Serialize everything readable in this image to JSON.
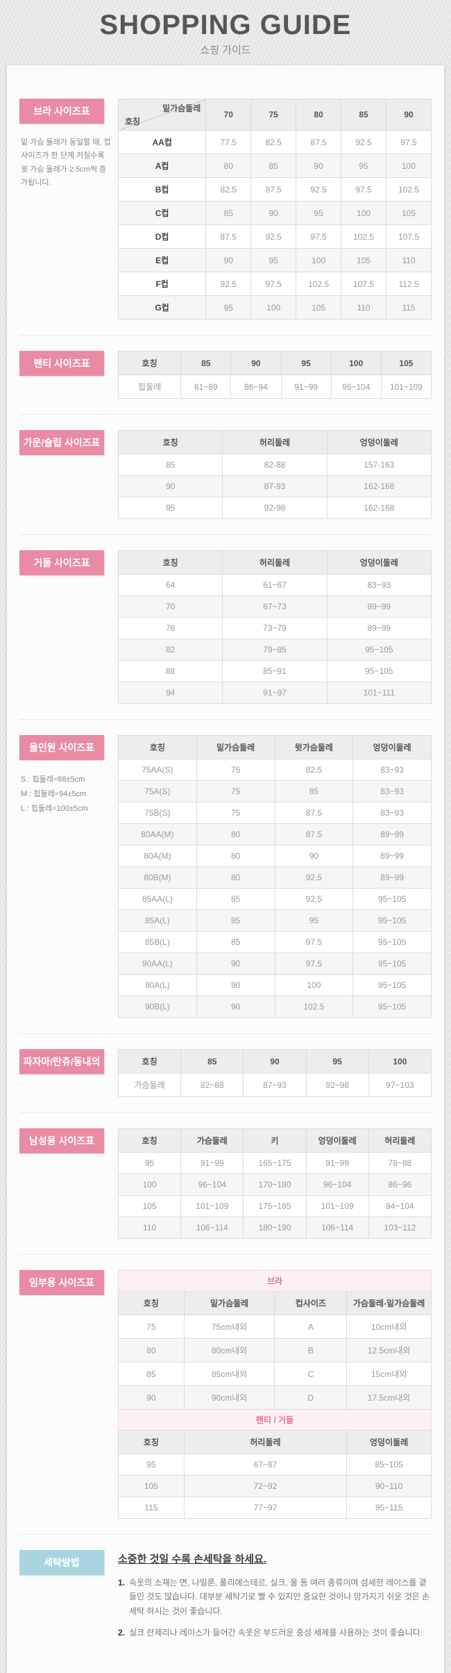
{
  "page": {
    "title": "SHOPPING GUIDE",
    "subtitle": "쇼핑 가이드"
  },
  "colors": {
    "accent_pink": "#e98ba4",
    "accent_blue": "#a8d4e2",
    "subheader_pink_bg": "#fdf0f4",
    "subheader_pink_text": "#e2748f",
    "table_header_bg": "#ededed"
  },
  "sections": {
    "bra": {
      "badge": "브라 사이즈표",
      "note": "밑 가슴 둘레가 동일할 때, 컵 사이즈가 한 단계 커질수록 윗 가슴 둘레가 2.5cm씩 증가됩니다.",
      "table": {
        "cols": 6,
        "firstColStrong": true,
        "rows": [
          {
            "type": "head",
            "cells": [
              {
                "diag": {
                  "top": "밑가슴둘레",
                  "bottom": "호칭"
                }
              },
              "70",
              "75",
              "80",
              "85",
              "90"
            ]
          },
          {
            "type": "data",
            "cells": [
              "AA컵",
              "77.5",
              "82.5",
              "87.5",
              "92.5",
              "97.5"
            ]
          },
          {
            "type": "data",
            "cells": [
              "A컵",
              "80",
              "85",
              "90",
              "95",
              "100"
            ]
          },
          {
            "type": "data",
            "cells": [
              "B컵",
              "82.5",
              "87.5",
              "92.5",
              "97.5",
              "102.5"
            ]
          },
          {
            "type": "data",
            "cells": [
              "C컵",
              "85",
              "90",
              "95",
              "100",
              "105"
            ]
          },
          {
            "type": "data",
            "cells": [
              "D컵",
              "87.5",
              "92.5",
              "97.5",
              "102.5",
              "107.5"
            ]
          },
          {
            "type": "data",
            "cells": [
              "E컵",
              "90",
              "95",
              "100",
              "105",
              "110"
            ]
          },
          {
            "type": "data",
            "cells": [
              "F컵",
              "92.5",
              "97.5",
              "102.5",
              "107.5",
              "112.5"
            ]
          },
          {
            "type": "data",
            "cells": [
              "G컵",
              "95",
              "100",
              "105",
              "110",
              "115"
            ]
          }
        ]
      }
    },
    "panty": {
      "badge": "팬티 사이즈표",
      "table": {
        "cols": 6,
        "rows": [
          {
            "type": "head",
            "cells": [
              "호칭",
              "85",
              "90",
              "95",
              "100",
              "105"
            ]
          },
          {
            "type": "data",
            "cells": [
              "힙둘레",
              "81~89",
              "86~94",
              "91~99",
              "96~104",
              "101~109"
            ]
          }
        ]
      }
    },
    "gown": {
      "badge": "가운/슬립 사이즈표",
      "table": {
        "cols": 3,
        "rows": [
          {
            "type": "head",
            "cells": [
              "호칭",
              "허리둘레",
              "엉덩이둘레"
            ]
          },
          {
            "type": "data",
            "cells": [
              "85",
              "82-88",
              "157-163"
            ]
          },
          {
            "type": "data",
            "cells": [
              "90",
              "87-93",
              "162-168"
            ]
          },
          {
            "type": "data",
            "cells": [
              "95",
              "92-98",
              "162-168"
            ]
          }
        ]
      }
    },
    "girdle": {
      "badge": "거들 사이즈표",
      "table": {
        "cols": 3,
        "rows": [
          {
            "type": "head",
            "cells": [
              "호칭",
              "허리둘레",
              "엉덩이둘레"
            ]
          },
          {
            "type": "data",
            "cells": [
              "64",
              "61~67",
              "83~93"
            ]
          },
          {
            "type": "data",
            "cells": [
              "70",
              "67~73",
              "89~99"
            ]
          },
          {
            "type": "data",
            "cells": [
              "76",
              "73~79",
              "89~99"
            ]
          },
          {
            "type": "data",
            "cells": [
              "82",
              "79~85",
              "95~105"
            ]
          },
          {
            "type": "data",
            "cells": [
              "88",
              "85~91",
              "95~105"
            ]
          },
          {
            "type": "data",
            "cells": [
              "94",
              "91~97",
              "101~111"
            ]
          }
        ]
      }
    },
    "allinone": {
      "badge": "올인원 사이즈표",
      "notes": [
        "S : 힙둘레=88±5cm",
        "M : 힙둘레=94±5cm",
        "L : 힙둘레=100±5cm"
      ],
      "table": {
        "cols": 4,
        "rows": [
          {
            "type": "head",
            "cells": [
              "호칭",
              "밑가슴둘레",
              "윗가슴둘레",
              "엉덩이둘레"
            ]
          },
          {
            "type": "data",
            "cells": [
              "75AA(S)",
              "75",
              "82.5",
              "83~93"
            ]
          },
          {
            "type": "data",
            "cells": [
              "75A(S)",
              "75",
              "85",
              "83~93"
            ]
          },
          {
            "type": "data",
            "cells": [
              "75B(S)",
              "75",
              "87.5",
              "83~93"
            ]
          },
          {
            "type": "data",
            "cells": [
              "80AA(M)",
              "80",
              "87.5",
              "89~99"
            ]
          },
          {
            "type": "data",
            "cells": [
              "80A(M)",
              "80",
              "90",
              "89~99"
            ]
          },
          {
            "type": "data",
            "cells": [
              "80B(M)",
              "80",
              "92.5",
              "89~99"
            ]
          },
          {
            "type": "data",
            "cells": [
              "85AA(L)",
              "85",
              "92.5",
              "95~105"
            ]
          },
          {
            "type": "data",
            "cells": [
              "85A(L)",
              "85",
              "95",
              "95~105"
            ]
          },
          {
            "type": "data",
            "cells": [
              "85B(L)",
              "85",
              "97.5",
              "95~105"
            ]
          },
          {
            "type": "data",
            "cells": [
              "90AA(L)",
              "90",
              "97.5",
              "95~105"
            ]
          },
          {
            "type": "data",
            "cells": [
              "90A(L)",
              "90",
              "100",
              "95~105"
            ]
          },
          {
            "type": "data",
            "cells": [
              "90B(L)",
              "90",
              "102.5",
              "95~105"
            ]
          }
        ]
      }
    },
    "pajama": {
      "badge": "파자마/란쥬/동내의",
      "table": {
        "cols": 5,
        "rows": [
          {
            "type": "head",
            "cells": [
              "호칭",
              "85",
              "90",
              "95",
              "100"
            ]
          },
          {
            "type": "data",
            "cells": [
              "가슴둘레",
              "82~88",
              "87~93",
              "92~98",
              "97~103"
            ]
          }
        ]
      }
    },
    "men": {
      "badge": "남성용 사이즈표",
      "table": {
        "cols": 5,
        "rows": [
          {
            "type": "head",
            "cells": [
              "호칭",
              "가슴둘레",
              "키",
              "엉덩이둘레",
              "허리둘레"
            ]
          },
          {
            "type": "data",
            "cells": [
              "95",
              "91~99",
              "165~175",
              "91~99",
              "78~88"
            ]
          },
          {
            "type": "data",
            "cells": [
              "100",
              "96~104",
              "170~180",
              "96~104",
              "86~96"
            ]
          },
          {
            "type": "data",
            "cells": [
              "105",
              "101~109",
              "175~185",
              "101~109",
              "94~104"
            ]
          },
          {
            "type": "data",
            "cells": [
              "110",
              "106~114",
              "180~190",
              "106~114",
              "103~112"
            ]
          }
        ]
      }
    },
    "maternity": {
      "badge": "임부용 사이즈표",
      "table": {
        "cols": 4,
        "rows": [
          {
            "type": "group",
            "label": "브라"
          },
          {
            "type": "head",
            "cells": [
              "호칭",
              "밑가슴둘레",
              "컵사이즈",
              "가슴둘레-밑가슴둘레"
            ]
          },
          {
            "type": "data",
            "cells": [
              "75",
              "75cm내외",
              "A",
              "10cm내외"
            ]
          },
          {
            "type": "data",
            "cells": [
              "80",
              "80cm내외",
              "B",
              "12.5cm내외"
            ]
          },
          {
            "type": "data",
            "cells": [
              "85",
              "85cm내외",
              "C",
              "15cm내외"
            ]
          },
          {
            "type": "data",
            "cells": [
              "90",
              "90cm내외",
              "D",
              "17.5cm내외"
            ]
          },
          {
            "type": "group",
            "label": "팬티 / 거들"
          },
          {
            "type": "head",
            "cells": [
              "호칭",
              {
                "t": "허리둘레",
                "s": 2
              },
              "엉덩이둘레"
            ]
          },
          {
            "type": "data",
            "cells": [
              "95",
              {
                "t": "67~87",
                "s": 2
              },
              "85~105"
            ]
          },
          {
            "type": "data",
            "cells": [
              "105",
              {
                "t": "72~92",
                "s": 2
              },
              "90~110"
            ]
          },
          {
            "type": "data",
            "cells": [
              "115",
              {
                "t": "77~97",
                "s": 2
              },
              "95~115"
            ]
          }
        ]
      }
    },
    "wash": {
      "badge": "세탁방법",
      "title": "소중한 것일 수록 손세탁을 하세요.",
      "items": [
        {
          "no": "1.",
          "text": "속옷의 소재는 면, 나일론, 폴리에스테르, 실크, 울 등 여러 종류이며 섬세한 레이스를 곁들인 것도 많습니다. 대부분 세탁기로 빨 수 있지만 중요한 것이나 망가지기 쉬운 것은 손세탁 하시는 것이 좋습니다."
        },
        {
          "no": "2.",
          "text": "실크 란제리나 레이스가 들어간 속옷은 부드러운 중성 세제를 사용하는 것이 좋습니다."
        }
      ]
    }
  }
}
